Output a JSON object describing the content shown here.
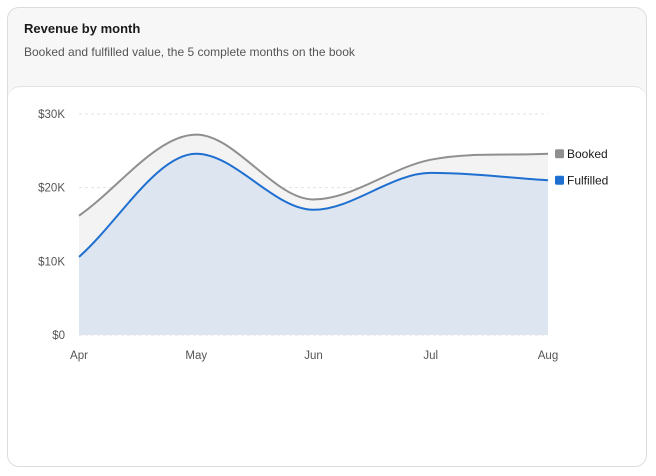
{
  "header": {
    "title": "Revenue by month",
    "subtitle": "Booked and fulfilled value, the 5 complete months on the book"
  },
  "chart_data": {
    "type": "area",
    "categories": [
      "Apr",
      "May",
      "Jun",
      "Jul",
      "Aug"
    ],
    "series": [
      {
        "name": "Booked",
        "values": [
          16200,
          27200,
          18400,
          23800,
          24600
        ],
        "color": "#8f8f8f"
      },
      {
        "name": "Fulfilled",
        "values": [
          10600,
          24600,
          17000,
          22000,
          21000
        ],
        "color": "#1f6fd1"
      }
    ],
    "y_ticks": [
      "$0",
      "$10K",
      "$20K",
      "$30K"
    ],
    "ylim": [
      0,
      30000
    ],
    "grid": true,
    "legend": "right, at line ends"
  }
}
